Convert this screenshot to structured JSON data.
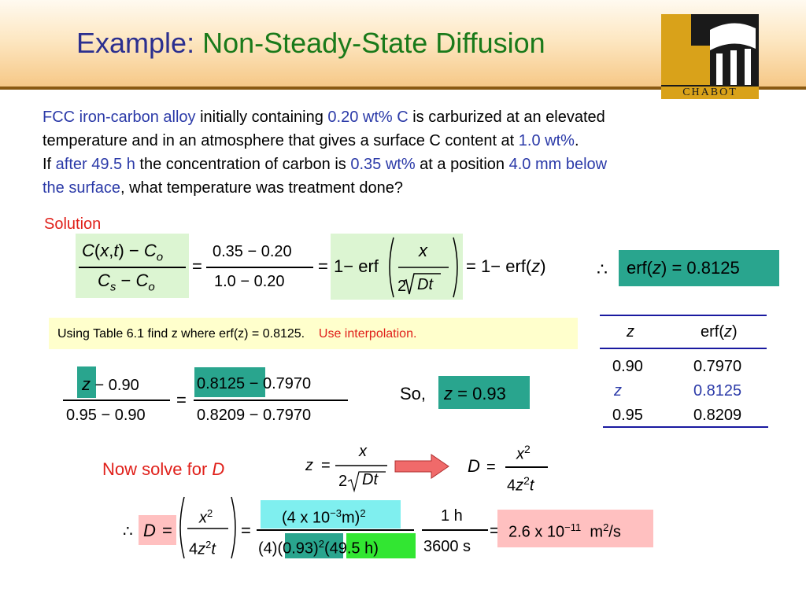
{
  "title": {
    "prefix": "Example: ",
    "main": "Non-Steady-State Diffusion"
  },
  "logo": {
    "text": "CHABOT"
  },
  "problem": {
    "l1": [
      "FCC iron-carbon alloy",
      " initially containing ",
      "0.20 wt% C",
      " is carburized at an elevated"
    ],
    "l2": [
      "temperature and in an atmosphere that gives a surface C content at ",
      "1.0 wt%",
      "."
    ],
    "l3": [
      "If ",
      "after 49.5 h",
      " the concentration of carbon is ",
      "0.35 wt%",
      " at a position ",
      "4.0 mm below"
    ],
    "l4": [
      "the surface",
      ", what temperature was treatment done?"
    ]
  },
  "solution_label": "Solution",
  "eq1": {
    "num_C": "C",
    "num_x": "x",
    "num_t": "t",
    "num_Co": "C",
    "sub_o": "o",
    "den_Cs": "C",
    "sub_s": "s",
    "den_Co": "C",
    "n2": "0.35",
    "n2b": "0.20",
    "d2": "1.0",
    "d2b": "0.20",
    "one": "1",
    "erf": "erf",
    "x": "x",
    "two": "2",
    "Dt": "Dt",
    "z": "z",
    "minus": "−",
    "eq": "="
  },
  "therefore": "∴",
  "erf_result": {
    "lhs": "erf(",
    "z": "z",
    "rhs": ") = 0.8125"
  },
  "interp": {
    "text": "Using Table 6.1 find z where erf(z) = 0.8125.",
    "hint": "Use interpolation."
  },
  "table": {
    "headers": {
      "z": "z",
      "erf_a": "erf(",
      "erf_z": "z",
      "erf_b": ")"
    },
    "rows": [
      {
        "z": "0.90",
        "erf": "0.7970"
      },
      {
        "z": "z",
        "erf": "0.8125"
      },
      {
        "z": "0.95",
        "erf": "0.8209"
      }
    ]
  },
  "interp_eq": {
    "z": "z",
    "n1": "0.90",
    "d1a": "0.95",
    "d1b": "0.90",
    "n2a": "0.8125",
    "n2b": "0.7970",
    "d2a": "0.8209",
    "d2b": "0.7970"
  },
  "so": {
    "label": "So,",
    "z": "z",
    "val": "= 0.93"
  },
  "now_solve": {
    "text": "Now solve for ",
    "D": "D"
  },
  "eq3": {
    "z": "z",
    "x": "x",
    "two": "2",
    "Dt": "Dt"
  },
  "eq4": {
    "D": "D",
    "x": "x",
    "sup2": "2",
    "four": "4",
    "z": "z",
    "t": "t"
  },
  "final": {
    "D": "D",
    "x": "x",
    "sup2": "2",
    "four": "4",
    "z": "z",
    "t": "t",
    "num": "(4 x 10",
    "exp": "−3",
    "num_end": "m)",
    "num_sq": "2",
    "den4": "(4)",
    "den_z": "(0.93)",
    "den_sq": "2",
    "den_t": "(49.5 h)",
    "h": "1 h",
    "s": "3600 s",
    "result": "2.6 x 10",
    "res_exp": "−11",
    "res_unit": "m",
    "res_sq": "2",
    "res_s": "/s"
  },
  "colors": {
    "navy": "#2b2f8f",
    "green": "#1a7a1a",
    "blue": "#2b3aa8",
    "red": "#e0201a"
  }
}
